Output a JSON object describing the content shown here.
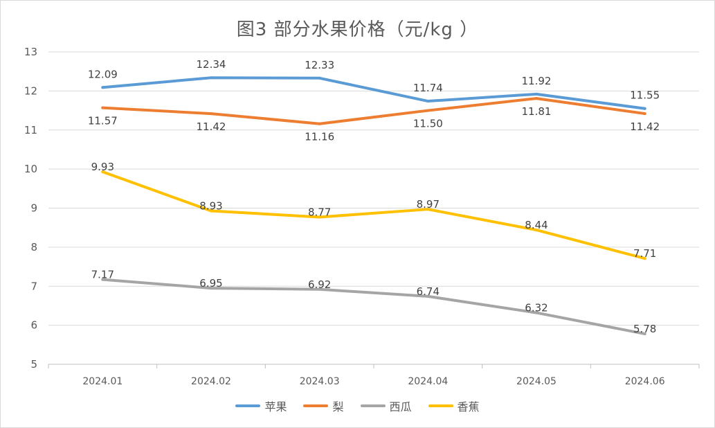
{
  "chart_data": {
    "type": "line",
    "title": "图3  部分水果价格（元/kg ）",
    "categories": [
      "2024.01",
      "2024.02",
      "2024.03",
      "2024.04",
      "2024.05",
      "2024.06"
    ],
    "ylim": [
      5,
      13
    ],
    "yticks": [
      "5",
      "6",
      "7",
      "8",
      "9",
      "10",
      "11",
      "12",
      "13"
    ],
    "grid": true,
    "legend_position": "bottom",
    "series": [
      {
        "name": "苹果",
        "color": "#5b9bd5",
        "values": [
          12.09,
          12.34,
          12.33,
          11.74,
          11.92,
          11.55
        ],
        "labels": [
          "12.09",
          "12.34",
          "12.33",
          "11.74",
          "11.92",
          "11.55"
        ],
        "label_side": "above"
      },
      {
        "name": "梨",
        "color": "#ed7d31",
        "values": [
          11.57,
          11.42,
          11.16,
          11.5,
          11.81,
          11.42
        ],
        "labels": [
          "11.57",
          "11.42",
          "11.16",
          "11.50",
          "11.81",
          "11.42"
        ],
        "label_side": "below"
      },
      {
        "name": "西瓜",
        "color": "#a5a5a5",
        "values": [
          7.17,
          6.95,
          6.92,
          6.74,
          6.32,
          5.78
        ],
        "labels": [
          "7.17",
          "6.95",
          "6.92",
          "6.74",
          "6.32",
          "5.78"
        ],
        "label_side": "center"
      },
      {
        "name": "香蕉",
        "color": "#ffc000",
        "values": [
          9.93,
          8.93,
          8.77,
          8.97,
          8.44,
          7.71
        ],
        "labels": [
          "9.93",
          "8.93",
          "8.77",
          "8.97",
          "8.44",
          "7.71"
        ],
        "label_side": "center"
      }
    ]
  }
}
